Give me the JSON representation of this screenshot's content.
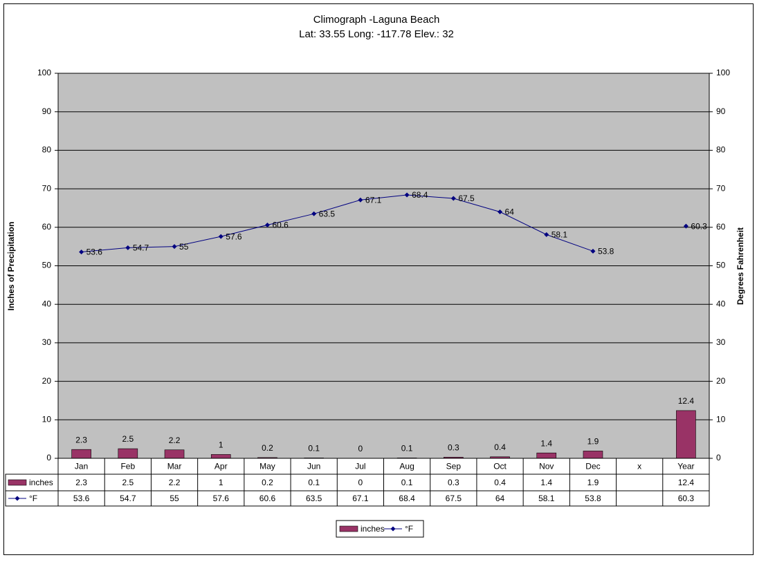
{
  "chart_data": {
    "type": "bar-line",
    "title": "Climograph -Laguna Beach",
    "subtitle": "Lat: 33.55 Long: -117.78 Elev.: 32",
    "y_label": "Inches of Precipitation",
    "y2_label": "Degrees Fahrenheit",
    "categories": [
      "Jan",
      "Feb",
      "Mar",
      "Apr",
      "May",
      "Jun",
      "Jul",
      "Aug",
      "Sep",
      "Oct",
      "Nov",
      "Dec",
      "x",
      "Year"
    ],
    "series": [
      {
        "name": "inches",
        "color": "#993366",
        "type": "bar",
        "values": [
          2.3,
          2.5,
          2.2,
          1,
          0.2,
          0.1,
          0,
          0.1,
          0.3,
          0.4,
          1.4,
          1.9,
          null,
          12.4
        ]
      },
      {
        "name": "°F",
        "color": "#000080",
        "type": "line",
        "axis": "y2",
        "values": [
          53.6,
          54.7,
          55,
          57.6,
          60.6,
          63.5,
          67.1,
          68.4,
          67.5,
          64,
          58.1,
          53.8,
          null,
          60.3
        ]
      }
    ],
    "ylim": [
      0,
      100
    ],
    "yticks": [
      0,
      10,
      20,
      30,
      40,
      50,
      60,
      70,
      80,
      90,
      100
    ],
    "y2lim": [
      0,
      100
    ],
    "y2ticks": [
      0,
      10,
      20,
      30,
      40,
      50,
      60,
      70,
      80,
      90,
      100
    ],
    "grid": true,
    "plot_background": "#c0c0c0",
    "legend": "bottom",
    "data_table": true
  }
}
